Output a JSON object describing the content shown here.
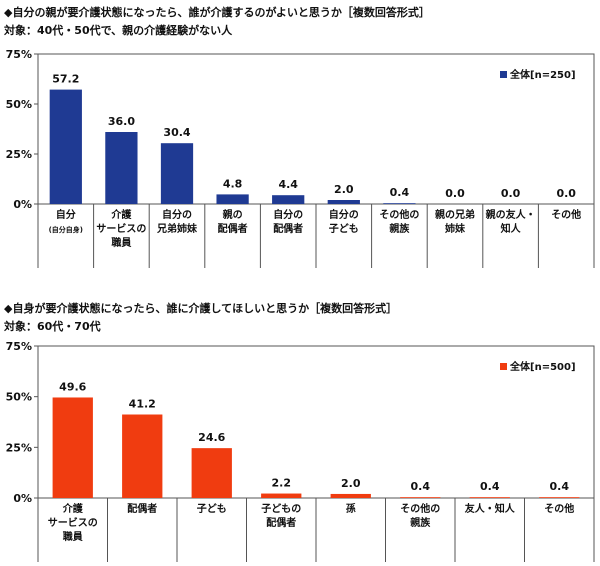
{
  "chart_data": [
    {
      "type": "bar",
      "title": "◆自分の親が要介護状態になったら、誰が介護するのがよいと思うか［複数回答形式］",
      "subtitle": "対象：40代・50代で、親の介護経験がない人",
      "categories": [
        [
          "自分",
          "(自分自身)"
        ],
        [
          "介護",
          "サービスの",
          "職員"
        ],
        [
          "自分の",
          "兄弟姉妹"
        ],
        [
          "親の",
          "配偶者"
        ],
        [
          "自分の",
          "配偶者"
        ],
        [
          "自分の",
          "子ども"
        ],
        [
          "その他の",
          "親族"
        ],
        [
          "親の兄弟",
          "姉妹"
        ],
        [
          "親の友人・",
          "知人"
        ],
        [
          "その他"
        ]
      ],
      "series": [
        {
          "name": "全体[n=250]",
          "values": [
            57.2,
            36.0,
            30.4,
            4.8,
            4.4,
            2.0,
            0.4,
            0.0,
            0.0,
            0.0
          ]
        }
      ],
      "value_labels": [
        "57.2",
        "36.0",
        "30.4",
        "4.8",
        "4.4",
        "2.0",
        "0.4",
        "0.0",
        "0.0",
        "0.0"
      ],
      "yticks": [
        "0%",
        "25%",
        "50%",
        "75%"
      ],
      "ylim": [
        0,
        75
      ],
      "color": "#1f3a93",
      "legend_position": "top-right",
      "grid": false
    },
    {
      "type": "bar",
      "title": "◆自身が要介護状態になったら、誰に介護してほしいと思うか［複数回答形式］",
      "subtitle": "対象：60代・70代",
      "categories": [
        [
          "介護",
          "サービスの",
          "職員"
        ],
        [
          "配偶者"
        ],
        [
          "子ども"
        ],
        [
          "子どもの",
          "配偶者"
        ],
        [
          "孫"
        ],
        [
          "その他の",
          "親族"
        ],
        [
          "友人・知人"
        ],
        [
          "その他"
        ]
      ],
      "series": [
        {
          "name": "全体[n=500]",
          "values": [
            49.6,
            41.2,
            24.6,
            2.2,
            2.0,
            0.4,
            0.4,
            0.4
          ]
        }
      ],
      "value_labels": [
        "49.6",
        "41.2",
        "24.6",
        "2.2",
        "2.0",
        "0.4",
        "0.4",
        "0.4"
      ],
      "yticks": [
        "0%",
        "25%",
        "50%",
        "75%"
      ],
      "ylim": [
        0,
        75
      ],
      "color": "#f03c10",
      "legend_position": "top-right",
      "grid": false
    }
  ]
}
